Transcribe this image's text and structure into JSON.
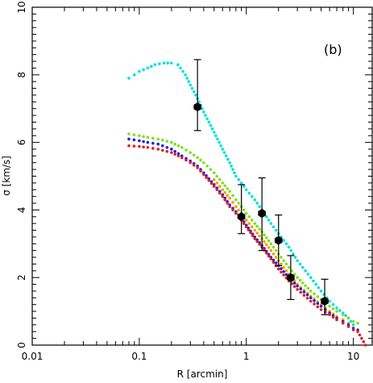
{
  "chart_data": {
    "type": "scatter",
    "panel_label": "(b)",
    "xlabel": "R [arcmin]",
    "ylabel": "σ [km/s]",
    "xscale": "log",
    "xlim": [
      0.01,
      15
    ],
    "ylim": [
      0,
      10
    ],
    "x_tick_labels": [
      {
        "value": 0.01,
        "label": "0.01"
      },
      {
        "value": 0.1,
        "label": "0.1"
      },
      {
        "value": 1,
        "label": "1"
      },
      {
        "value": 10,
        "label": "10"
      }
    ],
    "y_tick_labels": [
      {
        "value": 0,
        "label": "0"
      },
      {
        "value": 2,
        "label": "2"
      },
      {
        "value": 4,
        "label": "4"
      },
      {
        "value": 6,
        "label": "6"
      },
      {
        "value": 8,
        "label": "8"
      },
      {
        "value": 10,
        "label": "10"
      }
    ],
    "series": [
      {
        "color": "#00e0e0",
        "points": [
          [
            0.08,
            7.9
          ],
          [
            0.09,
            8.0
          ],
          [
            0.1,
            8.1
          ],
          [
            0.12,
            8.2
          ],
          [
            0.14,
            8.3
          ],
          [
            0.17,
            8.35
          ],
          [
            0.2,
            8.35
          ],
          [
            0.23,
            8.3
          ],
          [
            0.27,
            8.0
          ],
          [
            0.3,
            7.7
          ],
          [
            0.35,
            7.3
          ],
          [
            0.4,
            6.9
          ],
          [
            0.5,
            6.3
          ],
          [
            0.6,
            5.8
          ],
          [
            0.7,
            5.4
          ],
          [
            0.8,
            5.0
          ],
          [
            0.9,
            4.8
          ],
          [
            1.0,
            4.6
          ],
          [
            1.2,
            4.3
          ],
          [
            1.4,
            4.0
          ],
          [
            1.7,
            3.6
          ],
          [
            2.0,
            3.3
          ],
          [
            2.5,
            2.9
          ],
          [
            3.0,
            2.5
          ],
          [
            4.0,
            2.0
          ],
          [
            5.0,
            1.6
          ],
          [
            6.0,
            1.3
          ],
          [
            7.0,
            1.1
          ],
          [
            8.0,
            0.95
          ],
          [
            9.0,
            0.8
          ],
          [
            10.0,
            0.6
          ]
        ]
      },
      {
        "color": "#80e020",
        "points": [
          [
            0.08,
            6.25
          ],
          [
            0.1,
            6.2
          ],
          [
            0.12,
            6.15
          ],
          [
            0.15,
            6.1
          ],
          [
            0.2,
            6.0
          ],
          [
            0.25,
            5.85
          ],
          [
            0.3,
            5.7
          ],
          [
            0.35,
            5.55
          ],
          [
            0.4,
            5.4
          ],
          [
            0.5,
            5.1
          ],
          [
            0.6,
            4.8
          ],
          [
            0.7,
            4.55
          ],
          [
            0.8,
            4.3
          ],
          [
            0.9,
            4.1
          ],
          [
            1.0,
            3.9
          ],
          [
            1.2,
            3.6
          ],
          [
            1.4,
            3.35
          ],
          [
            1.7,
            3.0
          ],
          [
            2.0,
            2.7
          ],
          [
            2.5,
            2.3
          ],
          [
            3.0,
            2.0
          ],
          [
            4.0,
            1.6
          ],
          [
            5.0,
            1.35
          ],
          [
            6.0,
            1.15
          ],
          [
            7.0,
            1.0
          ],
          [
            8.0,
            0.9
          ],
          [
            9.0,
            0.8
          ],
          [
            10.0,
            0.7
          ],
          [
            11.0,
            0.65
          ]
        ]
      },
      {
        "color": "#f0a000",
        "points": [
          [
            0.5,
            4.9
          ],
          [
            0.6,
            4.6
          ],
          [
            0.7,
            4.35
          ],
          [
            0.8,
            4.1
          ],
          [
            0.9,
            3.9
          ],
          [
            1.0,
            3.7
          ],
          [
            1.2,
            3.4
          ],
          [
            1.4,
            3.15
          ],
          [
            1.7,
            2.8
          ],
          [
            2.0,
            2.5
          ],
          [
            2.5,
            2.1
          ],
          [
            3.0,
            1.8
          ],
          [
            4.0,
            1.45
          ],
          [
            5.0,
            1.2
          ],
          [
            6.0,
            1.0
          ],
          [
            7.0,
            0.85
          ],
          [
            8.0,
            0.75
          ],
          [
            9.0,
            0.65
          ]
        ]
      },
      {
        "color": "#2020e0",
        "points": [
          [
            0.08,
            6.1
          ],
          [
            0.1,
            6.05
          ],
          [
            0.12,
            6.0
          ],
          [
            0.15,
            5.95
          ],
          [
            0.2,
            5.8
          ],
          [
            0.25,
            5.6
          ],
          [
            0.3,
            5.45
          ],
          [
            0.35,
            5.3
          ],
          [
            0.4,
            5.1
          ],
          [
            0.5,
            4.75
          ],
          [
            0.6,
            4.45
          ],
          [
            0.7,
            4.15
          ],
          [
            0.8,
            3.95
          ],
          [
            0.9,
            3.75
          ],
          [
            1.0,
            3.55
          ],
          [
            1.2,
            3.2
          ],
          [
            1.4,
            2.95
          ],
          [
            1.7,
            2.6
          ],
          [
            2.0,
            2.35
          ],
          [
            2.5,
            2.0
          ],
          [
            3.0,
            1.75
          ],
          [
            4.0,
            1.4
          ],
          [
            5.0,
            1.15
          ],
          [
            6.0,
            0.95
          ],
          [
            7.0,
            0.8
          ],
          [
            8.0,
            0.7
          ],
          [
            9.0,
            0.6
          ],
          [
            10.0,
            0.5
          ],
          [
            11.0,
            0.45
          ]
        ]
      },
      {
        "color": "#e02020",
        "points": [
          [
            0.08,
            5.9
          ],
          [
            0.1,
            5.88
          ],
          [
            0.12,
            5.85
          ],
          [
            0.15,
            5.8
          ],
          [
            0.2,
            5.7
          ],
          [
            0.25,
            5.55
          ],
          [
            0.3,
            5.4
          ],
          [
            0.35,
            5.25
          ],
          [
            0.4,
            5.05
          ],
          [
            0.5,
            4.7
          ],
          [
            0.6,
            4.4
          ],
          [
            0.7,
            4.1
          ],
          [
            0.8,
            3.9
          ],
          [
            0.9,
            3.7
          ],
          [
            1.0,
            3.5
          ],
          [
            1.2,
            3.15
          ],
          [
            1.4,
            2.9
          ],
          [
            1.7,
            2.55
          ],
          [
            2.0,
            2.25
          ],
          [
            2.5,
            1.9
          ],
          [
            3.0,
            1.65
          ],
          [
            4.0,
            1.3
          ],
          [
            5.0,
            1.05
          ],
          [
            6.0,
            0.9
          ],
          [
            7.0,
            0.75
          ],
          [
            8.0,
            0.65
          ],
          [
            9.0,
            0.55
          ],
          [
            10.0,
            0.45
          ],
          [
            11.0,
            0.4
          ],
          [
            13.0,
            0.0
          ]
        ]
      }
    ],
    "observations": {
      "color": "#000000",
      "points": [
        {
          "x": 0.35,
          "y": 7.05,
          "ylow": 6.35,
          "yhigh": 8.45
        },
        {
          "x": 0.9,
          "y": 3.8,
          "ylow": 3.3,
          "yhigh": 4.75
        },
        {
          "x": 1.4,
          "y": 3.9,
          "ylow": 2.8,
          "yhigh": 4.95
        },
        {
          "x": 2.0,
          "y": 3.1,
          "ylow": 2.35,
          "yhigh": 3.85
        },
        {
          "x": 2.6,
          "y": 2.0,
          "ylow": 1.35,
          "yhigh": 2.65
        },
        {
          "x": 5.4,
          "y": 1.3,
          "ylow": 0.9,
          "yhigh": 1.95
        }
      ]
    }
  }
}
